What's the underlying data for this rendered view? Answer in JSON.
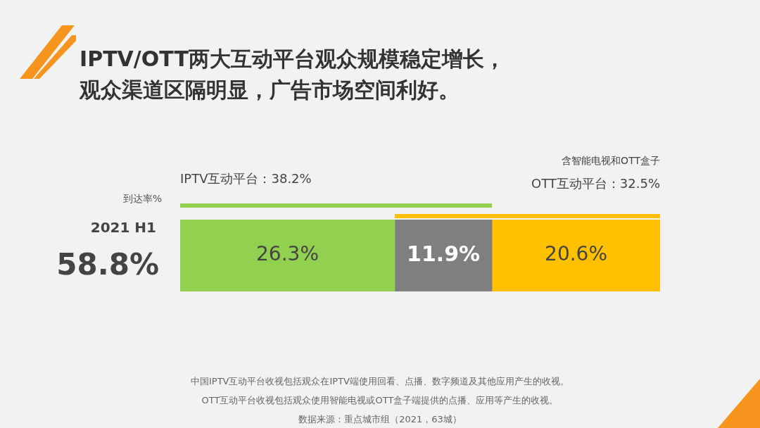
{
  "chart_data": {
    "type": "bar",
    "orientation": "horizontal",
    "stacked": true,
    "title": "IPTV/OTT两大互动平台观众规模稳定增长，观众渠道区隔明显，广告市场空间利好。",
    "ylabel": "到达率%",
    "categories": [
      "2021 H1"
    ],
    "series": [
      {
        "color": "#92d050",
        "values": [
          26.3
        ],
        "value_labels": [
          "26.3%"
        ]
      },
      {
        "color": "#7f7f7f",
        "values": [
          11.9
        ],
        "value_labels": [
          "11.9%"
        ]
      },
      {
        "color": "#ffc000",
        "values": [
          20.6
        ],
        "value_labels": [
          "20.6%"
        ]
      }
    ],
    "totals": [
      "58.8%"
    ],
    "tick_labels": false,
    "legend": false,
    "annotations": [
      "IPTV互动平台：38.2%",
      "含智能电视和OTT盒子",
      "OTT互动平台：32.5%",
      "中国IPTV互动平台收视包括观众在IPTV端使用回看、点播、数字频道及其他应用产生的收视。",
      "OTT互动平台收视包括观众使用智能电视或OTT盒子端提供的点播、应用等产生的收视。",
      "数据来源：重点城市组（2021，63城）"
    ]
  }
}
